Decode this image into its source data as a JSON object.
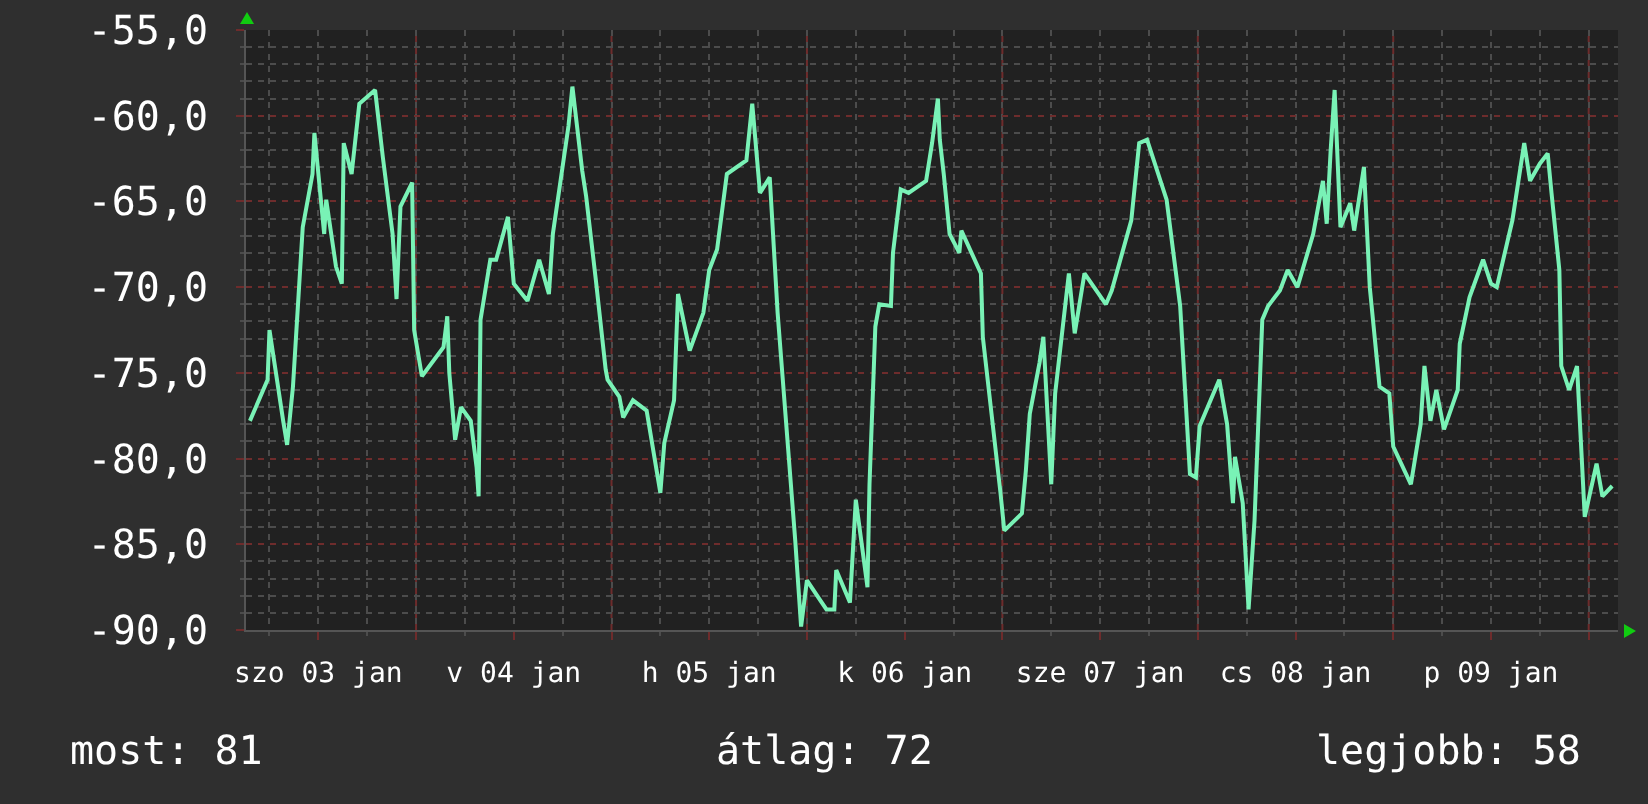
{
  "chart_data": {
    "type": "line",
    "x": [
      "--01-03T03:36",
      "--01-03T05:46",
      "--01-03T06:00",
      "--01-03T07:41",
      "--01-03T08:10",
      "--01-03T08:53",
      "--01-03T10:05",
      "--01-03T11:17",
      "--01-03T11:31",
      "--01-03T12:43",
      "--01-03T12:58",
      "--01-03T14:10",
      "--01-03T14:53",
      "--01-03T15:07",
      "--01-03T16:05",
      "--01-03T17:02",
      "--01-03T18:58",
      "--01-03T19:55",
      "--01-03T21:07",
      "--01-03T21:36",
      "--01-03T22:05",
      "--01-03T23:31",
      "--01-03T23:46",
      "--01-04T00:43",
      "--01-04T03:22",
      "--01-04T03:50",
      "--01-04T04:05",
      "--01-04T04:48",
      "--01-04T05:31",
      "--01-04T06:43",
      "--01-04T07:26",
      "--01-04T07:41",
      "--01-04T07:55",
      "--01-04T09:07",
      "--01-04T09:50",
      "--01-04T11:17",
      "--01-04T12:00",
      "--01-04T13:41",
      "--01-04T15:07",
      "--01-04T16:19",
      "--01-04T16:48",
      "--01-04T18:43",
      "--01-04T19:12",
      "--01-04T20:24",
      "--01-04T20:53",
      "--01-04T22:05",
      "--01-04T23:17",
      "--01-04T23:31",
      "--01-05T00:58",
      "--01-05T01:26",
      "--01-05T02:38",
      "--01-05T04:19",
      "--01-05T06:00",
      "--01-05T06:29",
      "--01-05T07:41",
      "--01-05T08:10",
      "--01-05T09:36",
      "--01-05T11:17",
      "--01-05T12:00",
      "--01-05T12:58",
      "--01-05T14:10",
      "--01-05T16:34",
      "--01-05T17:17",
      "--01-05T18:14",
      "--01-05T19:26",
      "--01-05T20:24",
      "--01-05T22:34",
      "--01-05T23:17",
      "--01-06T00:00",
      "--01-06T01:41",
      "--01-06T02:24",
      "--01-06T03:22",
      "--01-06T03:36",
      "--01-06T05:17",
      "--01-06T06:00",
      "--01-06T07:26",
      "--01-06T07:41",
      "--01-06T08:24",
      "--01-06T08:53",
      "--01-06T10:19",
      "--01-06T10:34",
      "--01-06T11:31",
      "--01-06T12:29",
      "--01-06T14:38",
      "--01-06T15:22",
      "--01-06T16:05",
      "--01-06T16:19",
      "--01-06T16:48",
      "--01-06T17:31",
      "--01-06T18:43",
      "--01-06T18:58",
      "--01-06T21:22",
      "--01-06T21:36",
      "--01-06T23:46",
      "--01-07T00:14",
      "--01-07T02:24",
      "--01-07T02:53",
      "--01-07T03:22",
      "--01-07T04:34",
      "--01-07T05:02",
      "--01-07T06:00",
      "--01-07T06:29",
      "--01-07T08:10",
      "--01-07T08:53",
      "--01-07T10:05",
      "--01-07T12:43",
      "--01-07T13:26",
      "--01-07T15:50",
      "--01-07T16:48",
      "--01-07T17:46",
      "--01-07T20:10",
      "--01-07T21:50",
      "--01-07T23:02",
      "--01-07T23:46",
      "--01-08T00:14",
      "--01-08T02:38",
      "--01-08T03:36",
      "--01-08T04:19",
      "--01-08T04:34",
      "--01-08T05:31",
      "--01-08T06:14",
      "--01-08T06:58",
      "--01-08T07:55",
      "--01-08T08:38",
      "--01-08T10:05",
      "--01-08T11:02",
      "--01-08T12:14",
      "--01-08T14:10",
      "--01-08T15:22",
      "--01-08T15:50",
      "--01-08T16:19",
      "--01-08T16:48",
      "--01-08T17:31",
      "--01-08T18:43",
      "--01-08T19:12",
      "--01-08T20:24",
      "--01-08T21:07",
      "--01-08T22:19",
      "--01-08T23:31",
      "--01-09T00:00",
      "--01-09T02:10",
      "--01-09T03:22",
      "--01-09T03:50",
      "--01-09T04:34",
      "--01-09T05:17",
      "--01-09T06:14",
      "--01-09T07:55",
      "--01-09T08:10",
      "--01-09T09:22",
      "--01-09T11:02",
      "--01-09T12:00",
      "--01-09T12:43",
      "--01-09T14:38",
      "--01-09T16:05",
      "--01-09T16:48",
      "--01-09T18:00",
      "--01-09T18:58",
      "--01-09T19:26",
      "--01-09T20:24",
      "--01-09T20:38",
      "--01-09T21:36",
      "--01-09T22:34",
      "--01-09T23:31",
      "--01-10T00:58",
      "--01-10T01:41",
      "--01-10T02:53"
    ],
    "series": [
      {
        "color": "#79f2b6",
        "values": [
          -77.8,
          -75.4,
          -72.5,
          -77.8,
          -79.2,
          -75.8,
          -66.5,
          -63.4,
          -61.0,
          -66.9,
          -64.9,
          -68.8,
          -69.8,
          -61.6,
          -63.4,
          -59.3,
          -58.5,
          -62.4,
          -66.9,
          -70.7,
          -65.3,
          -63.9,
          -72.5,
          -75.2,
          -73.5,
          -71.7,
          -75.0,
          -78.9,
          -77.0,
          -77.8,
          -80.5,
          -82.2,
          -71.9,
          -68.4,
          -68.4,
          -65.9,
          -69.8,
          -70.8,
          -68.4,
          -70.4,
          -66.9,
          -60.6,
          -58.3,
          -63.2,
          -64.7,
          -69.6,
          -74.8,
          -75.4,
          -76.4,
          -77.6,
          -76.6,
          -77.2,
          -82.0,
          -79.1,
          -76.6,
          -70.4,
          -73.7,
          -71.5,
          -69.0,
          -67.8,
          -63.4,
          -62.6,
          -59.3,
          -64.5,
          -63.6,
          -71.5,
          -84.8,
          -89.8,
          -87.1,
          -88.3,
          -88.8,
          -88.8,
          -86.5,
          -88.4,
          -82.4,
          -87.5,
          -81.5,
          -72.3,
          -71.0,
          -71.1,
          -68.0,
          -64.3,
          -64.5,
          -63.8,
          -61.6,
          -59.0,
          -61.4,
          -63.4,
          -66.9,
          -68.0,
          -66.7,
          -69.2,
          -72.9,
          -82.0,
          -84.2,
          -83.2,
          -80.7,
          -77.4,
          -74.4,
          -72.9,
          -81.5,
          -76.2,
          -69.2,
          -72.7,
          -69.2,
          -71.0,
          -70.2,
          -66.1,
          -61.6,
          -61.4,
          -64.9,
          -71.1,
          -80.9,
          -81.1,
          -78.1,
          -75.4,
          -78.0,
          -82.6,
          -79.9,
          -82.6,
          -88.8,
          -83.6,
          -71.9,
          -71.1,
          -70.2,
          -69.0,
          -70.0,
          -66.9,
          -63.8,
          -66.3,
          -62.0,
          -58.5,
          -66.5,
          -65.1,
          -66.7,
          -63.0,
          -70.0,
          -75.8,
          -76.2,
          -79.3,
          -81.5,
          -78.0,
          -74.6,
          -77.8,
          -76.0,
          -78.3,
          -76.0,
          -73.3,
          -70.6,
          -68.4,
          -69.8,
          -70.0,
          -66.1,
          -61.6,
          -63.8,
          -62.8,
          -62.2,
          -64.5,
          -69.0,
          -74.6,
          -76.0,
          -74.6,
          -83.4,
          -80.3,
          -82.2,
          -81.6
        ]
      }
    ],
    "xlim": [
      "--01-03T03:07",
      "--01-10T03:36"
    ],
    "xticks": [
      {
        "value": "--01-03T12:00",
        "label": "szo 03 jan"
      },
      {
        "value": "--01-04",
        "label": null
      },
      {
        "value": "--01-04T12:00",
        "label": "v 04 jan"
      },
      {
        "value": "--01-05",
        "label": null
      },
      {
        "value": "--01-05T12:00",
        "label": "h 05 jan"
      },
      {
        "value": "--01-06",
        "label": null
      },
      {
        "value": "--01-06T12:00",
        "label": "k 06 jan"
      },
      {
        "value": "--01-07",
        "label": null
      },
      {
        "value": "--01-07T12:00",
        "label": "sze 07 jan"
      },
      {
        "value": "--01-08",
        "label": null
      },
      {
        "value": "--01-08T12:00",
        "label": "cs 08 jan"
      },
      {
        "value": "--01-09",
        "label": null
      },
      {
        "value": "--01-09T12:00",
        "label": "p 09 jan"
      },
      {
        "value": "--01-10",
        "label": null
      }
    ],
    "ylim": [
      -90,
      -55
    ],
    "yticks": [
      {
        "value": -90,
        "label": "-90,0"
      },
      {
        "value": -85,
        "label": "-85,0"
      },
      {
        "value": -80,
        "label": "-80,0"
      },
      {
        "value": -75,
        "label": "-75,0"
      },
      {
        "value": -70,
        "label": "-70,0"
      },
      {
        "value": -65,
        "label": "-65,0"
      },
      {
        "value": -60,
        "label": "-60,0"
      },
      {
        "value": -55,
        "label": "-55,0"
      }
    ],
    "grid": true,
    "annotations": [
      "most: 81",
      "átlag: 72",
      "legjobb: 58"
    ]
  }
}
